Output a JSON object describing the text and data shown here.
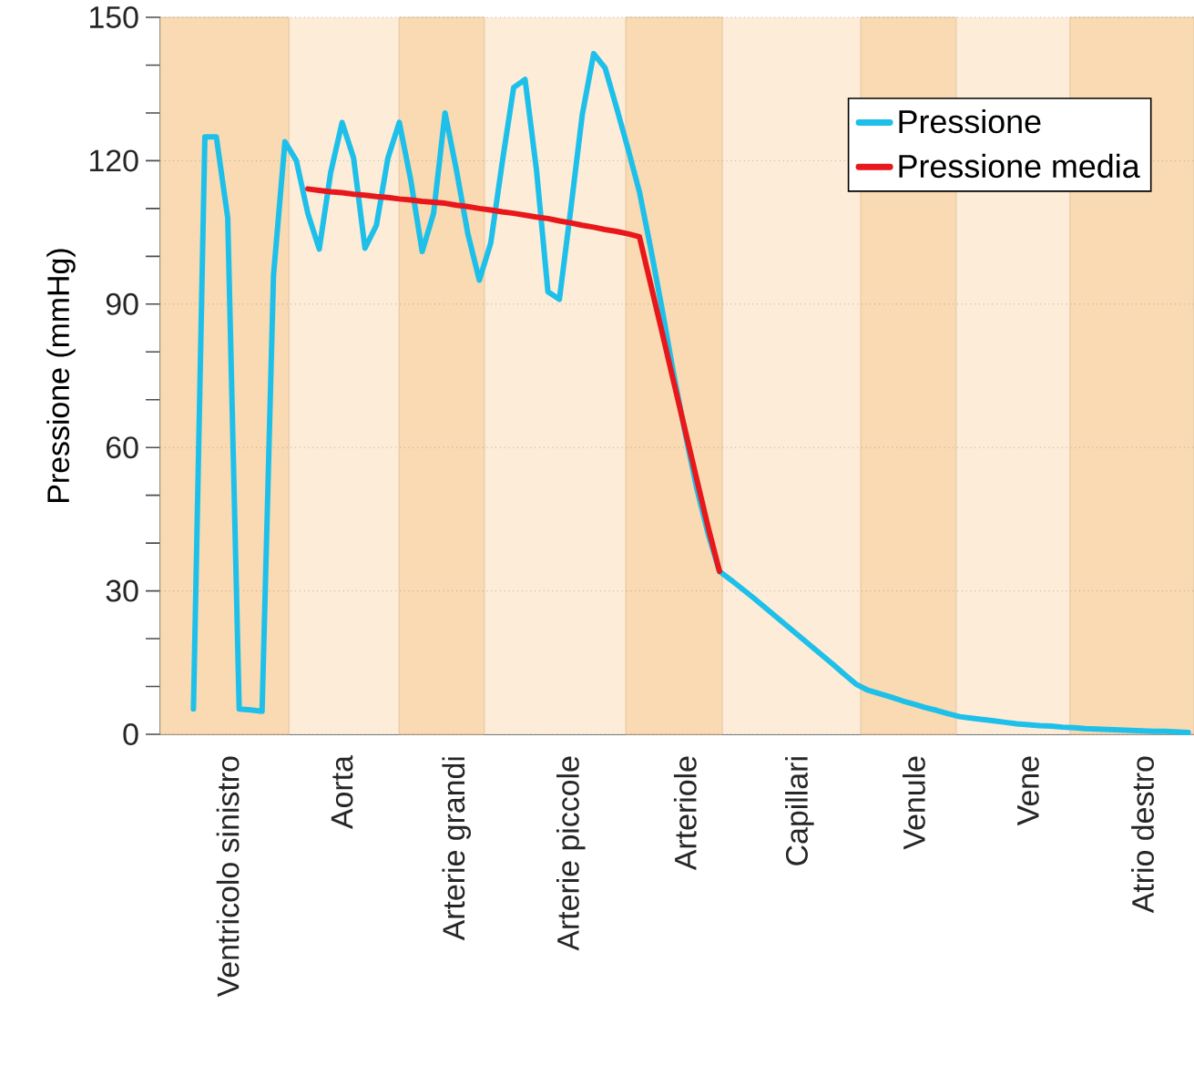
{
  "chart_data": {
    "type": "line",
    "ylabel": "Pressione (mmHg)",
    "categories": [
      null,
      null,
      null,
      null,
      null,
      null,
      "Ventricolo sinistro",
      null,
      null,
      null,
      null,
      null,
      null,
      null,
      null,
      null,
      "Aorta",
      null,
      null,
      null,
      null,
      null,
      null,
      null,
      null,
      null,
      "Arterie grandi",
      null,
      null,
      null,
      null,
      null,
      null,
      null,
      null,
      null,
      "Arterie piccole",
      null,
      null,
      null,
      null,
      null,
      null,
      null,
      null,
      null,
      "Arteriole",
      null,
      null,
      null,
      null,
      null,
      null,
      null,
      null,
      null,
      "Capillari",
      null,
      null,
      null,
      null,
      null,
      null,
      null,
      null,
      null,
      "Venule",
      null,
      null,
      null,
      null,
      null,
      null,
      null,
      null,
      null,
      "Vene",
      null,
      null,
      null,
      null,
      null,
      null,
      null,
      null,
      null,
      "Atrio destro",
      null,
      null,
      null,
      null
    ],
    "ylim": [
      0,
      150
    ],
    "yticks": [
      0,
      {
        "value": 10,
        "label": null
      },
      {
        "value": 20,
        "label": null
      },
      30,
      {
        "value": 40,
        "label": null
      },
      {
        "value": 50,
        "label": null
      },
      60,
      {
        "value": 70,
        "label": null
      },
      {
        "value": 80,
        "label": null
      },
      90,
      {
        "value": 100,
        "label": null
      },
      {
        "value": 110,
        "label": null
      },
      120,
      {
        "value": 130,
        "label": null
      },
      {
        "value": 140,
        "label": null
      },
      150
    ],
    "grid": "y",
    "legend": "top right",
    "marker": "none",
    "line_style": "solid",
    "series": [
      {
        "name": "Pressione",
        "color": "#1ec0ea",
        "values": [
          null,
          null,
          null,
          5.3,
          125,
          125,
          108,
          5.3,
          5.1,
          4.8,
          96,
          124,
          120,
          109,
          101.5,
          117.5,
          128,
          120.6,
          101.7,
          106.5,
          120.5,
          128,
          116,
          101,
          109,
          130,
          118,
          104.7,
          95,
          102.8,
          119.6,
          135.3,
          137,
          118,
          92.6,
          91,
          109.9,
          129.6,
          142.4,
          139.4,
          131.1,
          122.5,
          113.5,
          101.5,
          88.7,
          75.3,
          63,
          51.6,
          42,
          34.1,
          32.3,
          30.4,
          28.5,
          26.5,
          24.5,
          22.5,
          20.5,
          18.5,
          16.5,
          14.5,
          12.4,
          10.4,
          9.2,
          8.5,
          7.8,
          7,
          6.3,
          5.6,
          5,
          4.3,
          3.7,
          3.4,
          3.1,
          2.8,
          2.5,
          2.2,
          2,
          1.8,
          1.7,
          1.5,
          1.4,
          1.2,
          1.1,
          1,
          0.9,
          0.8,
          0.7,
          0.6,
          0.6,
          0.5,
          0.4
        ]
      },
      {
        "name": "Pressione media",
        "color": "#e8171b",
        "values": [
          null,
          null,
          null,
          null,
          null,
          null,
          null,
          null,
          null,
          null,
          null,
          null,
          null,
          114.1,
          113.8,
          113.5,
          113.3,
          113,
          112.8,
          112.5,
          112.3,
          112,
          111.8,
          111.5,
          111.3,
          111.1,
          110.7,
          110.4,
          110,
          109.7,
          109.3,
          109,
          108.6,
          108.2,
          107.9,
          107.4,
          107,
          106.5,
          106.1,
          105.6,
          105.2,
          104.7,
          104.1,
          94,
          83.9,
          73.7,
          63.6,
          53.5,
          43.4,
          34.1,
          null,
          null,
          null,
          null,
          null,
          null,
          null,
          null,
          null,
          null,
          null,
          null,
          null,
          null,
          null,
          null,
          null,
          null,
          null,
          null,
          null,
          null,
          null,
          null,
          null,
          null,
          null,
          null,
          null,
          null,
          null,
          null,
          null,
          null,
          null,
          null,
          null,
          null,
          null,
          null,
          null
        ]
      }
    ]
  }
}
